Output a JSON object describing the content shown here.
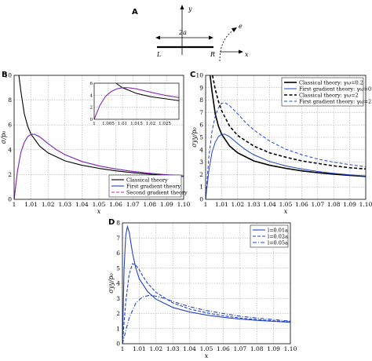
{
  "schematic": {
    "panel_label": "A",
    "y_label": "y",
    "x_label": "x",
    "crack_label": "2a",
    "left_label": "L",
    "right_label": "R",
    "path_label": "e"
  },
  "chart_data": [
    {
      "id": "B",
      "type": "line",
      "panel_label": "B",
      "xlabel": "x",
      "ylabel": "σ/p₀",
      "xlim": [
        1.0,
        1.1
      ],
      "ylim": [
        0,
        10
      ],
      "xticks": [
        "1",
        "1.01",
        "1.02",
        "1.03",
        "1.04",
        "1.05",
        "1.06",
        "1.07",
        "1.08",
        "1.09",
        "1.10"
      ],
      "yticks": [
        "0",
        "2",
        "4",
        "6",
        "8",
        "10"
      ],
      "grid": true,
      "legend": "bottom-right",
      "series": [
        {
          "name": "Classical theory",
          "color": "#000000",
          "dash": "",
          "x": [
            1.0028,
            1.004,
            1.006,
            1.008,
            1.01,
            1.015,
            1.02,
            1.03,
            1.04,
            1.05,
            1.06,
            1.07,
            1.08,
            1.09,
            1.1
          ],
          "y": [
            10.0,
            8.7,
            6.9,
            5.9,
            5.25,
            4.3,
            3.75,
            3.1,
            2.75,
            2.5,
            2.3,
            2.15,
            2.03,
            1.93,
            1.85
          ]
        },
        {
          "name": "First gradient theory",
          "color": "#2244cc",
          "dash": "",
          "x": [
            1.0,
            1.002,
            1.004,
            1.006,
            1.008,
            1.01,
            1.012,
            1.015,
            1.02,
            1.025,
            1.03,
            1.04,
            1.05,
            1.06,
            1.07,
            1.08,
            1.09,
            1.1
          ],
          "y": [
            0.0,
            2.3,
            3.8,
            4.6,
            5.05,
            5.25,
            5.25,
            5.05,
            4.5,
            4.0,
            3.6,
            3.05,
            2.7,
            2.45,
            2.25,
            2.1,
            1.98,
            1.88
          ]
        },
        {
          "name": "Second gradient theory",
          "color": "#cc22aa",
          "dash": "4,2",
          "x": [
            1.0,
            1.002,
            1.004,
            1.006,
            1.008,
            1.01,
            1.012,
            1.015,
            1.02,
            1.025,
            1.03,
            1.04,
            1.05,
            1.06,
            1.07,
            1.08,
            1.09,
            1.1
          ],
          "y": [
            0.0,
            2.3,
            3.8,
            4.6,
            5.05,
            5.25,
            5.25,
            5.05,
            4.5,
            4.0,
            3.6,
            3.05,
            2.7,
            2.45,
            2.25,
            2.1,
            1.98,
            1.88
          ]
        }
      ],
      "inset": {
        "xlim": [
          1.0,
          1.03
        ],
        "ylim": [
          0,
          6
        ],
        "xticks": [
          "1",
          "1.005",
          "1.01",
          "1.015",
          "1.02",
          "1.025"
        ],
        "yticks": [
          "0",
          "2",
          "4",
          "6"
        ]
      }
    },
    {
      "id": "C",
      "type": "line",
      "panel_label": "C",
      "xlabel": "x",
      "ylabel": "σyy/p₀",
      "xlim": [
        1.0,
        1.1
      ],
      "ylim": [
        0,
        10
      ],
      "xticks": [
        "1",
        "1.01",
        "1.02",
        "1.03",
        "1.04",
        "1.05",
        "1.06",
        "1.07",
        "1.08",
        "1.09",
        "1.10"
      ],
      "yticks": [
        "0",
        "1",
        "2",
        "3",
        "4",
        "5",
        "6",
        "7",
        "8",
        "9",
        "10"
      ],
      "grid": true,
      "legend": "top-right",
      "series": [
        {
          "name": "Classical theory: γω=0.2",
          "color": "#000000",
          "dash": "",
          "width": 1.6,
          "x": [
            1.0028,
            1.004,
            1.006,
            1.008,
            1.01,
            1.015,
            1.02,
            1.03,
            1.04,
            1.05,
            1.06,
            1.07,
            1.08,
            1.09,
            1.1
          ],
          "y": [
            10.0,
            8.7,
            6.9,
            5.9,
            5.25,
            4.3,
            3.75,
            3.1,
            2.75,
            2.5,
            2.3,
            2.15,
            2.03,
            1.93,
            1.85
          ]
        },
        {
          "name": "First gradient theory: γω=0.2",
          "color": "#2244cc",
          "dash": "",
          "width": 1.0,
          "x": [
            1.0,
            1.002,
            1.004,
            1.006,
            1.008,
            1.01,
            1.012,
            1.015,
            1.02,
            1.025,
            1.03,
            1.04,
            1.05,
            1.06,
            1.07,
            1.08,
            1.09,
            1.1
          ],
          "y": [
            0.0,
            2.3,
            3.8,
            4.6,
            5.05,
            5.25,
            5.25,
            5.05,
            4.5,
            4.0,
            3.6,
            3.05,
            2.7,
            2.45,
            2.25,
            2.1,
            1.98,
            1.88
          ]
        },
        {
          "name": "Classical theory: γω=2",
          "color": "#000000",
          "dash": "4,2.5",
          "width": 1.6,
          "x": [
            1.0043,
            1.006,
            1.008,
            1.01,
            1.015,
            1.02,
            1.03,
            1.04,
            1.05,
            1.06,
            1.07,
            1.08,
            1.09,
            1.1
          ],
          "y": [
            10.0,
            8.9,
            7.9,
            7.15,
            5.9,
            5.15,
            4.3,
            3.75,
            3.4,
            3.1,
            2.9,
            2.7,
            2.55,
            2.45
          ]
        },
        {
          "name": "First gradient theory: γω=2",
          "color": "#2244cc",
          "dash": "4,2.5",
          "width": 1.0,
          "x": [
            1.0,
            1.002,
            1.004,
            1.006,
            1.008,
            1.01,
            1.012,
            1.015,
            1.02,
            1.025,
            1.03,
            1.04,
            1.05,
            1.06,
            1.07,
            1.08,
            1.09,
            1.1
          ],
          "y": [
            0.0,
            3.4,
            5.5,
            6.7,
            7.4,
            7.75,
            7.8,
            7.55,
            6.9,
            6.2,
            5.6,
            4.7,
            4.05,
            3.6,
            3.25,
            3.0,
            2.8,
            2.62
          ]
        }
      ]
    },
    {
      "id": "D",
      "type": "line",
      "panel_label": "D",
      "xlabel": "x",
      "ylabel": "σyy/p₀",
      "xlim": [
        1.0,
        1.1
      ],
      "ylim": [
        0,
        8
      ],
      "xticks": [
        "1",
        "1.01",
        "1.02",
        "1.03",
        "1.04",
        "1.05",
        "1.06",
        "1.07",
        "1.08",
        "1.09",
        "1.10"
      ],
      "yticks": [
        "0",
        "1",
        "2",
        "3",
        "4",
        "5",
        "6",
        "7",
        "8"
      ],
      "grid": true,
      "legend": "top-right",
      "series": [
        {
          "name": "l=0.01a",
          "color": "#2244cc",
          "dash": "",
          "x": [
            1.0,
            1.001,
            1.002,
            1.003,
            1.004,
            1.005,
            1.006,
            1.008,
            1.01,
            1.015,
            1.02,
            1.03,
            1.04,
            1.05,
            1.06,
            1.07,
            1.08,
            1.09,
            1.1
          ],
          "y": [
            0.0,
            5.0,
            7.2,
            7.75,
            7.4,
            6.7,
            6.0,
            5.0,
            4.3,
            3.45,
            2.95,
            2.4,
            2.1,
            1.9,
            1.75,
            1.63,
            1.55,
            1.48,
            1.42
          ]
        },
        {
          "name": "l=0.02a",
          "color": "#2244cc",
          "dash": "4,2",
          "x": [
            1.0,
            1.002,
            1.004,
            1.006,
            1.008,
            1.01,
            1.012,
            1.015,
            1.02,
            1.03,
            1.04,
            1.05,
            1.06,
            1.07,
            1.08,
            1.09,
            1.1
          ],
          "y": [
            0.0,
            2.8,
            4.6,
            5.3,
            5.2,
            4.9,
            4.5,
            4.0,
            3.4,
            2.7,
            2.3,
            2.05,
            1.85,
            1.7,
            1.6,
            1.52,
            1.45
          ]
        },
        {
          "name": "l=0.05a",
          "color": "#2244cc",
          "dash": "5,2,1,2",
          "x": [
            1.0,
            1.004,
            1.008,
            1.012,
            1.016,
            1.02,
            1.025,
            1.03,
            1.04,
            1.05,
            1.06,
            1.07,
            1.08,
            1.09,
            1.1
          ],
          "y": [
            0.0,
            1.7,
            2.7,
            3.1,
            3.2,
            3.15,
            3.0,
            2.8,
            2.45,
            2.2,
            2.0,
            1.82,
            1.7,
            1.6,
            1.5
          ]
        }
      ]
    }
  ]
}
